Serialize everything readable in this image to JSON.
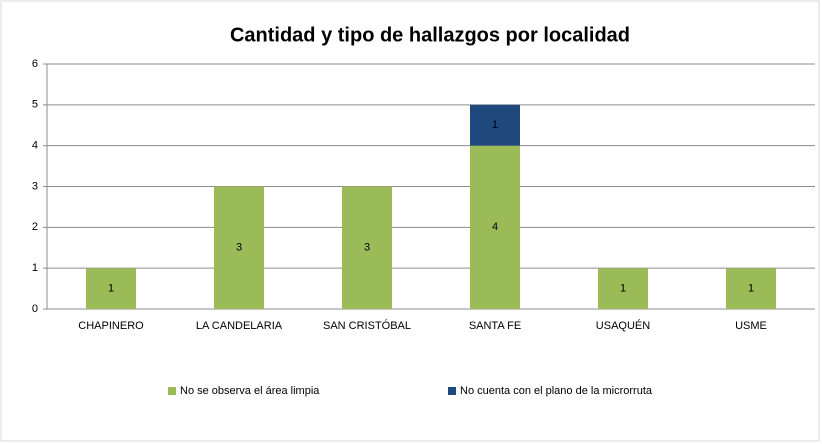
{
  "chart_data": {
    "type": "stacked_bar",
    "title": "Cantidad y tipo de hallazgos por localidad",
    "categories": [
      "CHAPINERO",
      "LA CANDELARIA",
      "SAN CRISTÓBAL",
      "SANTA FE",
      "USAQUÉN",
      "USME"
    ],
    "series": [
      {
        "name": "No se observa el área limpia",
        "color": "#9bbb59",
        "values": [
          1,
          3,
          3,
          4,
          1,
          1
        ]
      },
      {
        "name": "No cuenta con el plano de la microrruta",
        "color": "#1f497d",
        "values": [
          null,
          null,
          null,
          1,
          null,
          null
        ]
      }
    ],
    "ylim": [
      0,
      6
    ],
    "yticks": [
      0,
      1,
      2,
      3,
      4,
      5,
      6
    ],
    "grid": true,
    "legend": "bottom"
  }
}
